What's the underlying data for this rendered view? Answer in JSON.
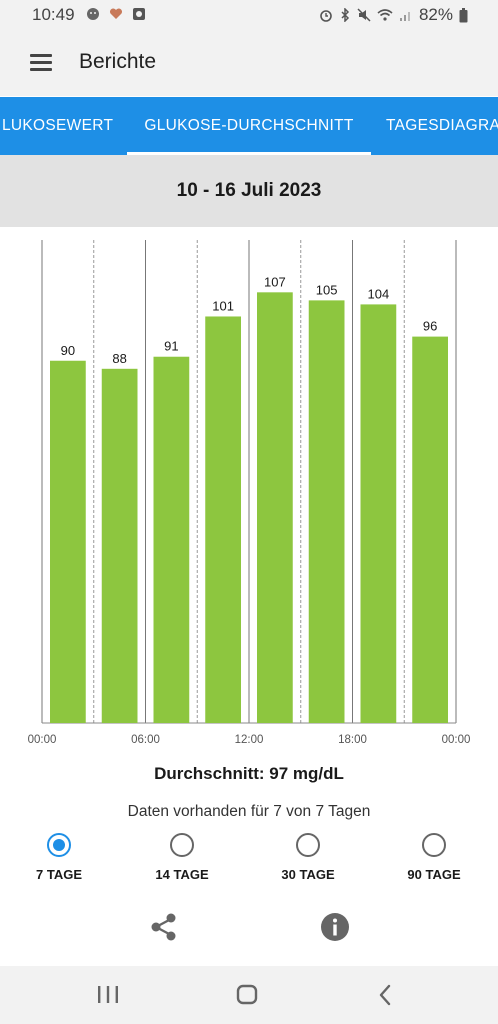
{
  "status_bar": {
    "time": "10:49",
    "battery": "82%",
    "icons": [
      "moon-face-icon",
      "heart-icon",
      "app-icon",
      "alarm-icon",
      "bluetooth-icon",
      "mute-icon",
      "wifi-icon",
      "signal-icon",
      "battery-icon"
    ]
  },
  "app_bar": {
    "title": "Berichte",
    "menu_icon": "hamburger-menu-icon"
  },
  "tabs": [
    {
      "label": "LUKOSEWERT",
      "active": false
    },
    {
      "label": "GLUKOSE-DURCHSCHNITT",
      "active": true
    },
    {
      "label": "TAGESDIAGRA",
      "active": false
    }
  ],
  "date_range": "10 - 16 Juli 2023",
  "chart_data": {
    "type": "bar",
    "categories": [
      "",
      "",
      "",
      "",
      "",
      "",
      "",
      ""
    ],
    "values": [
      90,
      88,
      91,
      101,
      107,
      105,
      104,
      96
    ],
    "value_labels": [
      "90",
      "88",
      "91",
      "101",
      "107",
      "105",
      "104",
      "96"
    ],
    "x_ticks": [
      "00:00",
      "06:00",
      "12:00",
      "18:00",
      "00:00"
    ],
    "ylim": [
      0,
      120
    ],
    "bar_color": "#8dc63f",
    "grid": "vertical-dashed",
    "title": "",
    "xlabel": "",
    "ylabel": ""
  },
  "summary": {
    "average": "Durchschnitt: 97 mg/dL",
    "availability": "Daten vorhanden für 7 von 7 Tagen"
  },
  "range_options": [
    {
      "label": "7 TAGE",
      "checked": true
    },
    {
      "label": "14 TAGE",
      "checked": false
    },
    {
      "label": "30 TAGE",
      "checked": false
    },
    {
      "label": "90 TAGE",
      "checked": false
    }
  ],
  "actions": [
    "share-icon",
    "info-icon"
  ],
  "nav_bar": [
    "recent-apps-icon",
    "home-icon",
    "back-icon"
  ],
  "colors": {
    "accent": "#1e8fe6",
    "bar": "#8dc63f",
    "band": "#e2e2e2",
    "chrome": "#f2f2f2"
  }
}
